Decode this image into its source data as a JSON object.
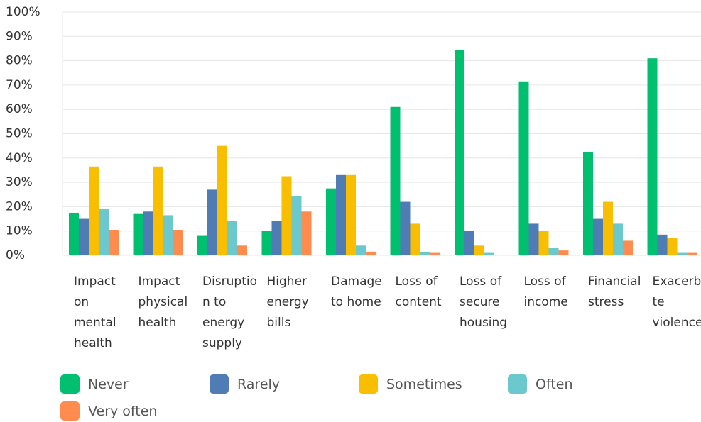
{
  "chart_data": {
    "type": "bar",
    "categories": [
      "Impact on mental health",
      "Impact physical health",
      "Disruption to energy supply",
      "Higher energy bills",
      "Damage to home",
      "Loss of content",
      "Loss of secure housing",
      "Loss of income",
      "Financial stress",
      "Exacerbate violence"
    ],
    "series": [
      {
        "name": "Never",
        "color": "#00bf6f",
        "values": [
          17.5,
          17,
          8,
          10,
          27.5,
          61,
          84.5,
          71.5,
          42.5,
          81
        ]
      },
      {
        "name": "Rarely",
        "color": "#507cb6",
        "values": [
          15,
          18,
          27,
          14,
          33,
          22,
          10,
          13,
          15,
          8.5
        ]
      },
      {
        "name": "Sometimes",
        "color": "#f9be00",
        "values": [
          36.5,
          36.5,
          45,
          32.5,
          33,
          13,
          4,
          10,
          22,
          7
        ]
      },
      {
        "name": "Often",
        "color": "#6bc8cd",
        "values": [
          19,
          16.5,
          14,
          24.5,
          4,
          1.5,
          1,
          3,
          13,
          1
        ]
      },
      {
        "name": "Very often",
        "color": "#ff8b4f",
        "values": [
          10.5,
          10.5,
          4,
          18,
          1.5,
          1,
          0,
          2,
          6,
          1
        ]
      }
    ],
    "ylim": [
      0,
      100
    ],
    "yticks": [
      {
        "value": 0,
        "label": "0%"
      },
      {
        "value": 10,
        "label": "10%"
      },
      {
        "value": 20,
        "label": "20%"
      },
      {
        "value": 30,
        "label": "30%"
      },
      {
        "value": 40,
        "label": "40%"
      },
      {
        "value": 50,
        "label": "50%"
      },
      {
        "value": 60,
        "label": "60%"
      },
      {
        "value": 70,
        "label": "70%"
      },
      {
        "value": 80,
        "label": "80%"
      },
      {
        "value": 90,
        "label": "90%"
      },
      {
        "value": 100,
        "label": "100%"
      }
    ],
    "grid": true,
    "legend": "bottom"
  }
}
